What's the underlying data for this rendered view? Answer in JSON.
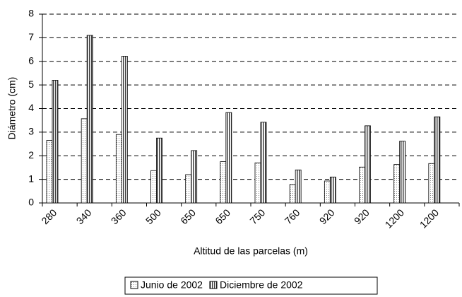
{
  "chart_data": {
    "type": "bar",
    "x_label": "Altitud de las parcelas (m)",
    "y_label": "Diámetro (cm)",
    "categories": [
      "280",
      "340",
      "360",
      "500",
      "650",
      "650",
      "750",
      "760",
      "920",
      "920",
      "1200",
      "1200"
    ],
    "series": [
      {
        "name": "Junio de 2002",
        "color": "#808080",
        "pattern": "dots",
        "values": [
          2.65,
          3.57,
          2.9,
          1.37,
          1.2,
          1.75,
          1.7,
          0.78,
          0.93,
          1.52,
          1.63,
          1.67
        ]
      },
      {
        "name": "Diciembre de 2002",
        "color": "#404040",
        "pattern": "stripes",
        "values": [
          5.2,
          7.1,
          6.22,
          2.75,
          2.22,
          3.83,
          3.42,
          1.4,
          1.1,
          3.27,
          2.62,
          3.65
        ]
      }
    ],
    "ylim": [
      0,
      8
    ],
    "yticks": [
      0,
      1,
      2,
      3,
      4,
      5,
      6,
      7,
      8
    ],
    "grid": true,
    "legend": "bottom"
  }
}
